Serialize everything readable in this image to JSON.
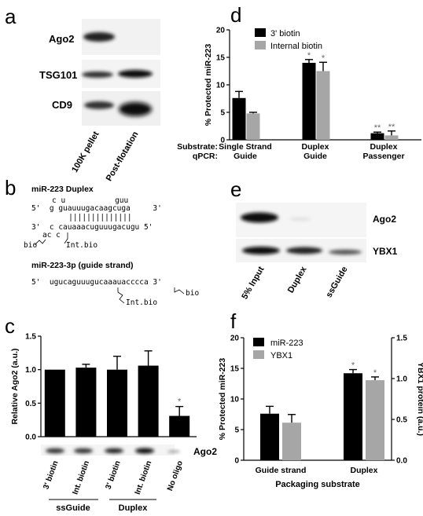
{
  "panels": {
    "a": {
      "letter": "a",
      "blot_rows": [
        "Ago2",
        "TSG101",
        "CD9"
      ],
      "lanes": [
        "100K pellet",
        "Post-flotation"
      ]
    },
    "b": {
      "letter": "b",
      "duplex_title": "miR-223 Duplex",
      "guide_title": "miR-223-3p (guide strand)",
      "dup_line1": "c u           guu",
      "dup_line2": "5'  g guauuugacaagcuga     3'",
      "dup_line4": "3'  c cauaaacuguuugacugu 5'",
      "dup_line5": "ac c",
      "bio_label": "bio",
      "int_bio_label": "Int.bio",
      "guide_seq": "5'  ugucaguuugucaaauacccca 3'",
      "guide_bio": "bio",
      "guide_int_bio": "Int.bio"
    },
    "c": {
      "letter": "c",
      "blot_label": "Ago2",
      "group_labels": [
        "ssGuide",
        "Duplex"
      ]
    },
    "d": {
      "letter": "d",
      "row_substrate": "Substrate:",
      "row_qpcr": "qPCR:",
      "groups": [
        {
          "line1": "Single Strand",
          "line2": "Guide"
        },
        {
          "line1": "Duplex",
          "line2": "Guide"
        },
        {
          "line1": "Duplex",
          "line2": "Passenger"
        }
      ]
    },
    "e": {
      "letter": "e",
      "blot_rows": [
        "Ago2",
        "YBX1"
      ],
      "lanes": [
        "5% Input",
        "Duplex",
        "ssGuide"
      ]
    },
    "f": {
      "letter": "f"
    }
  },
  "chart_data": [
    {
      "panel": "c",
      "type": "bar",
      "categories": [
        "3' biotin",
        "Int. biotin",
        "3' biotin",
        "Int. biotin",
        "No oligo"
      ],
      "values": [
        1.0,
        1.03,
        1.0,
        1.06,
        0.31
      ],
      "errors": [
        0.0,
        0.05,
        0.2,
        0.22,
        0.14
      ],
      "sig": [
        "",
        "",
        "",
        "",
        "*"
      ],
      "ylabel": "Relative Ago2 (a.u.)",
      "ylim": [
        0,
        1.5
      ],
      "yticks": [
        "0.0",
        "0.5",
        "1.0",
        "1.5"
      ],
      "colors": [
        "#000000"
      ]
    },
    {
      "panel": "d",
      "type": "bar",
      "categories": [
        "Single Strand Guide",
        "Duplex Guide",
        "Duplex Passenger"
      ],
      "series": [
        {
          "name": "3' biotin",
          "values": [
            7.6,
            14.0,
            1.2
          ],
          "errors": [
            1.2,
            0.6,
            0.2
          ],
          "sig": [
            "",
            "*",
            "**"
          ],
          "color": "#000000"
        },
        {
          "name": "Internal biotin",
          "values": [
            4.8,
            12.5,
            0.8
          ],
          "errors": [
            0.2,
            1.6,
            0.8
          ],
          "sig": [
            "",
            "*",
            "**"
          ],
          "color": "#a6a6a6"
        }
      ],
      "ylabel": "% Protected miR-223",
      "ylim": [
        0,
        20
      ],
      "yticks": [
        "0",
        "5",
        "10",
        "15",
        "20"
      ],
      "legend": "top-left"
    },
    {
      "panel": "f",
      "type": "bar",
      "categories": [
        "Guide strand",
        "Duplex"
      ],
      "series": [
        {
          "name": "miR-223",
          "axis": "left",
          "values": [
            7.6,
            14.2
          ],
          "errors": [
            1.2,
            0.6
          ],
          "sig": [
            "",
            "*"
          ],
          "color": "#000000"
        },
        {
          "name": "YBX1",
          "axis": "right",
          "values": [
            0.46,
            0.98
          ],
          "errors": [
            0.1,
            0.04
          ],
          "sig": [
            "",
            "*"
          ],
          "color": "#a6a6a6"
        }
      ],
      "xlabel": "Packaging substrate",
      "ylabel": "% Protected miR-223",
      "ylabel_right": "YBX1 protein (a.u.)",
      "ylim": [
        0,
        20
      ],
      "ylim_right": [
        0,
        1.5
      ],
      "yticks": [
        "0",
        "5",
        "10",
        "15",
        "20"
      ],
      "yticks_right": [
        "0.0",
        "0.5",
        "1.0",
        "1.5"
      ],
      "legend": "top-left"
    }
  ]
}
